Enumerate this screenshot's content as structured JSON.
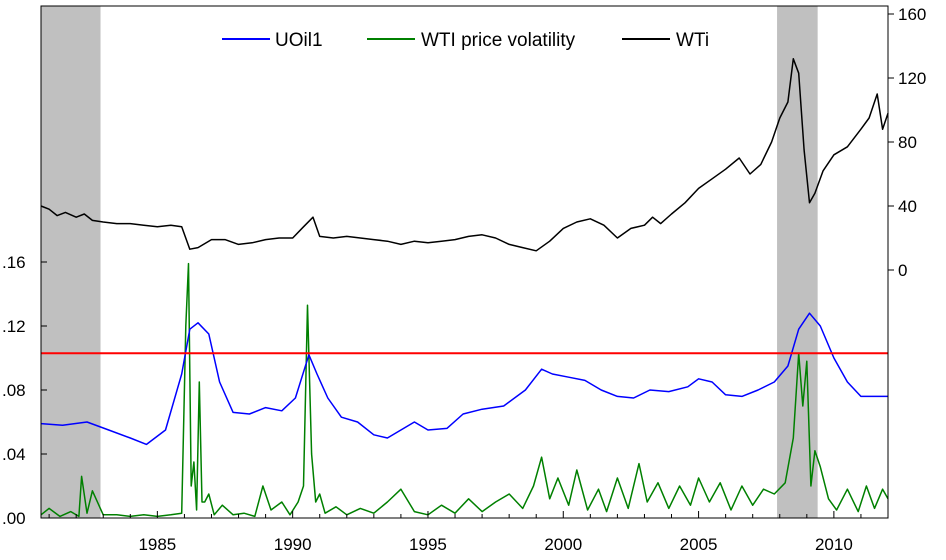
{
  "chart_data": {
    "type": "line",
    "title": "",
    "xlabel": "",
    "ylabel_left": "",
    "ylabel_right": "",
    "x_ticks": [
      "1985",
      "1990",
      "1995",
      "2000",
      "2005",
      "2010"
    ],
    "x_range": [
      1980.7,
      2012.0
    ],
    "left_axis": {
      "ticks": [
        ".00",
        ".04",
        ".08",
        ".12",
        ".16"
      ],
      "range": [
        0.0,
        0.16
      ]
    },
    "right_axis": {
      "ticks": [
        "0",
        "40",
        "80",
        "120",
        "160"
      ],
      "range": [
        0,
        160
      ]
    },
    "legend_position": "top-center",
    "recession_shading": [
      {
        "start": 1980.7,
        "end": 1982.9
      },
      {
        "start": 2007.9,
        "end": 2009.4
      }
    ],
    "threshold_line": {
      "value": 0.103,
      "axis": "left",
      "color": "#ff0000"
    },
    "colors": {
      "UOil1": "#0000ff",
      "WTI price volatility": "#008000",
      "WTi": "#000000",
      "shading": "#c0c0c0"
    },
    "series": [
      {
        "name": "UOil1",
        "axis": "left",
        "x": [
          1980.7,
          1981.5,
          1982.4,
          1983.2,
          1984.0,
          1984.6,
          1985.3,
          1985.9,
          1986.2,
          1986.5,
          1986.9,
          1987.3,
          1987.8,
          1988.4,
          1989.0,
          1989.6,
          1990.1,
          1990.6,
          1990.9,
          1991.3,
          1991.8,
          1992.4,
          1993.0,
          1993.5,
          1994.0,
          1994.5,
          1995.0,
          1995.7,
          1996.3,
          1997.0,
          1997.8,
          1998.6,
          1999.2,
          1999.6,
          2000.2,
          2000.8,
          2001.4,
          2002.0,
          2002.6,
          2003.2,
          2003.9,
          2004.6,
          2005.0,
          2005.5,
          2006.0,
          2006.6,
          2007.2,
          2007.8,
          2008.3,
          2008.7,
          2009.1,
          2009.5,
          2010.0,
          2010.5,
          2011.0,
          2011.5,
          2012.0
        ],
        "values": [
          0.059,
          0.058,
          0.06,
          0.055,
          0.05,
          0.046,
          0.055,
          0.09,
          0.118,
          0.122,
          0.115,
          0.085,
          0.066,
          0.065,
          0.069,
          0.067,
          0.075,
          0.102,
          0.09,
          0.075,
          0.063,
          0.06,
          0.052,
          0.05,
          0.055,
          0.06,
          0.055,
          0.056,
          0.065,
          0.068,
          0.07,
          0.08,
          0.093,
          0.09,
          0.088,
          0.086,
          0.08,
          0.076,
          0.075,
          0.08,
          0.079,
          0.082,
          0.087,
          0.085,
          0.077,
          0.076,
          0.08,
          0.085,
          0.095,
          0.118,
          0.128,
          0.12,
          0.1,
          0.085,
          0.076,
          0.076,
          0.076
        ]
      },
      {
        "name": "WTI price volatility",
        "axis": "left",
        "x": [
          1980.7,
          1981.0,
          1981.4,
          1981.8,
          1982.1,
          1982.2,
          1982.4,
          1982.6,
          1983.0,
          1983.5,
          1984.0,
          1984.5,
          1985.0,
          1985.5,
          1985.9,
          1986.05,
          1986.15,
          1986.25,
          1986.35,
          1986.45,
          1986.55,
          1986.65,
          1986.75,
          1986.9,
          1987.1,
          1987.4,
          1987.8,
          1988.2,
          1988.6,
          1988.9,
          1989.2,
          1989.6,
          1989.9,
          1990.2,
          1990.4,
          1990.55,
          1990.7,
          1990.85,
          1991.0,
          1991.2,
          1991.6,
          1992.0,
          1992.5,
          1993.0,
          1993.5,
          1994.0,
          1994.5,
          1995.0,
          1995.5,
          1996.0,
          1996.5,
          1997.0,
          1997.5,
          1998.0,
          1998.5,
          1998.9,
          1999.2,
          1999.5,
          1999.8,
          2000.2,
          2000.5,
          2000.9,
          2001.3,
          2001.6,
          2002.0,
          2002.4,
          2002.8,
          2003.1,
          2003.5,
          2003.9,
          2004.3,
          2004.7,
          2005.0,
          2005.4,
          2005.8,
          2006.2,
          2006.6,
          2007.0,
          2007.4,
          2007.8,
          2008.2,
          2008.5,
          2008.7,
          2008.85,
          2009.0,
          2009.15,
          2009.3,
          2009.5,
          2009.8,
          2010.1,
          2010.5,
          2010.9,
          2011.2,
          2011.5,
          2011.8,
          2012.0
        ],
        "values": [
          0.002,
          0.006,
          0.001,
          0.004,
          0.001,
          0.026,
          0.003,
          0.017,
          0.002,
          0.002,
          0.001,
          0.002,
          0.001,
          0.002,
          0.003,
          0.12,
          0.159,
          0.02,
          0.035,
          0.005,
          0.085,
          0.01,
          0.01,
          0.015,
          0.002,
          0.008,
          0.002,
          0.003,
          0.001,
          0.02,
          0.005,
          0.01,
          0.002,
          0.01,
          0.02,
          0.133,
          0.04,
          0.01,
          0.015,
          0.003,
          0.007,
          0.002,
          0.006,
          0.003,
          0.01,
          0.018,
          0.004,
          0.002,
          0.008,
          0.003,
          0.012,
          0.004,
          0.01,
          0.015,
          0.006,
          0.02,
          0.038,
          0.012,
          0.025,
          0.008,
          0.03,
          0.005,
          0.018,
          0.004,
          0.025,
          0.006,
          0.034,
          0.01,
          0.022,
          0.006,
          0.02,
          0.008,
          0.025,
          0.01,
          0.022,
          0.005,
          0.02,
          0.008,
          0.018,
          0.015,
          0.022,
          0.05,
          0.103,
          0.07,
          0.098,
          0.02,
          0.042,
          0.032,
          0.012,
          0.005,
          0.018,
          0.004,
          0.02,
          0.006,
          0.018,
          0.012
        ]
      },
      {
        "name": "WTi",
        "axis": "right",
        "x": [
          1980.7,
          1981.0,
          1981.3,
          1981.6,
          1982.0,
          1982.3,
          1982.6,
          1983.0,
          1983.5,
          1984.0,
          1984.5,
          1985.0,
          1985.5,
          1985.9,
          1986.2,
          1986.5,
          1987.0,
          1987.5,
          1988.0,
          1988.5,
          1989.0,
          1989.5,
          1990.0,
          1990.4,
          1990.75,
          1991.0,
          1991.5,
          1992.0,
          1992.5,
          1993.0,
          1993.5,
          1994.0,
          1994.5,
          1995.0,
          1995.5,
          1996.0,
          1996.5,
          1997.0,
          1997.5,
          1998.0,
          1998.5,
          1999.0,
          1999.5,
          2000.0,
          2000.5,
          2001.0,
          2001.5,
          2002.0,
          2002.5,
          2003.0,
          2003.3,
          2003.6,
          2004.0,
          2004.5,
          2005.0,
          2005.5,
          2006.0,
          2006.5,
          2006.9,
          2007.3,
          2007.7,
          2008.0,
          2008.3,
          2008.5,
          2008.7,
          2008.9,
          2009.1,
          2009.3,
          2009.6,
          2010.0,
          2010.5,
          2011.0,
          2011.3,
          2011.6,
          2011.8,
          2012.0
        ],
        "values": [
          40,
          38,
          34,
          36,
          33,
          35,
          31,
          30,
          29,
          29,
          28,
          27,
          28,
          27,
          13,
          14,
          19,
          19,
          16,
          17,
          19,
          20,
          20,
          27,
          33,
          21,
          20,
          21,
          20,
          19,
          18,
          16,
          18,
          17,
          18,
          19,
          21,
          22,
          20,
          16,
          14,
          12,
          18,
          26,
          30,
          32,
          28,
          20,
          26,
          28,
          33,
          29,
          35,
          42,
          51,
          57,
          63,
          70,
          60,
          66,
          80,
          95,
          105,
          132,
          123,
          75,
          42,
          48,
          62,
          72,
          77,
          88,
          95,
          110,
          88,
          98
        ]
      }
    ]
  }
}
